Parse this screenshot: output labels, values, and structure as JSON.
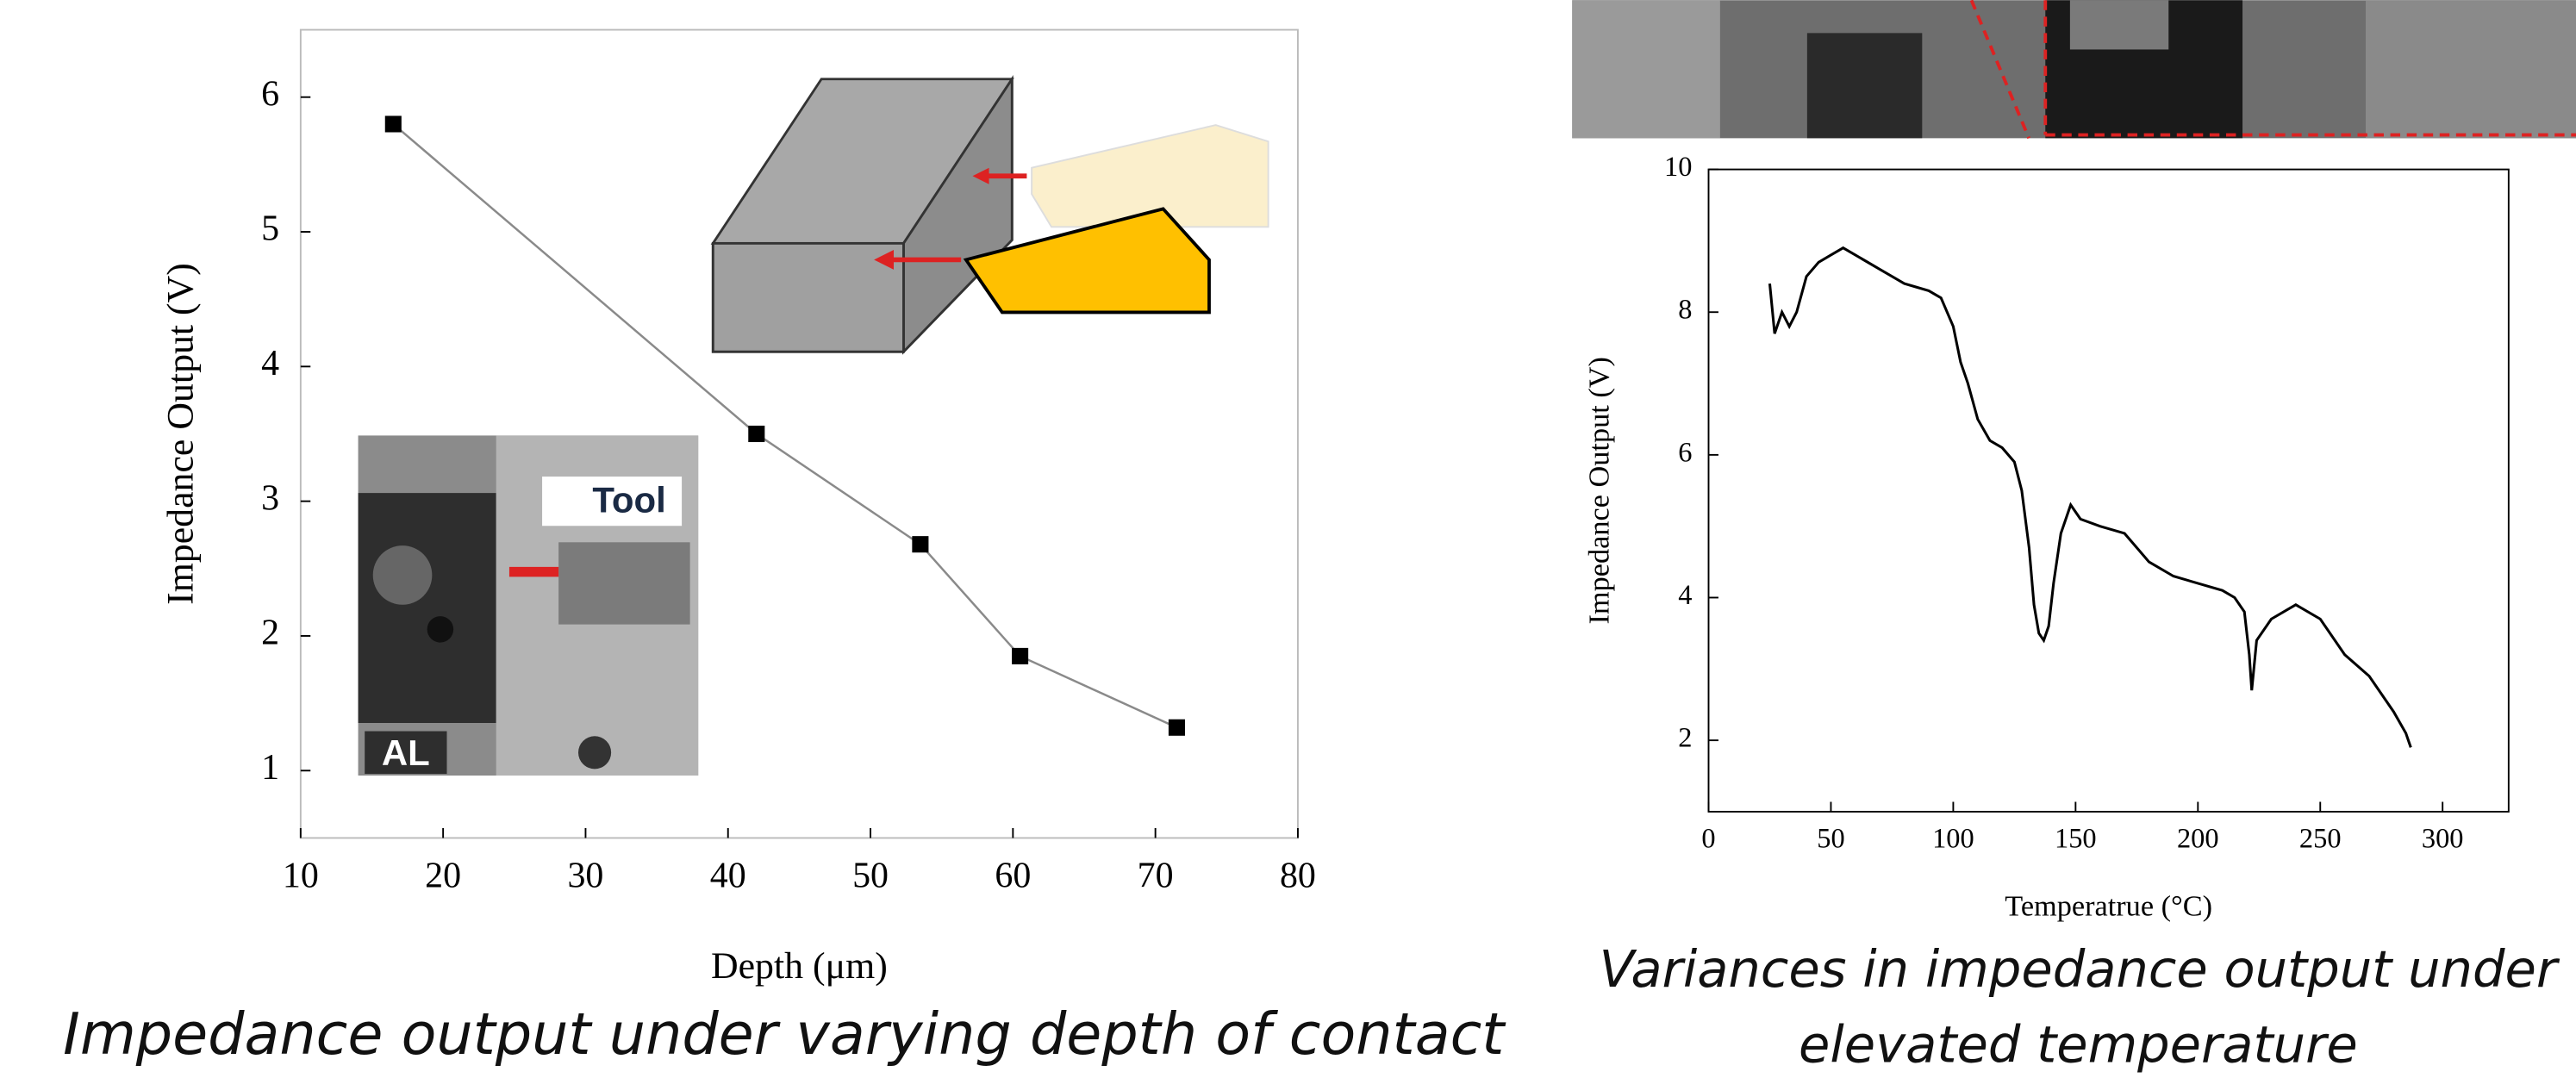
{
  "chart_data": [
    {
      "type": "line",
      "xlabel": "Depth (μm)",
      "ylabel": "Impedance Output (V)",
      "caption": [
        "Impedance output under varying depth of contact"
      ],
      "annotations": [
        "Tool",
        "AL"
      ],
      "x": [
        16.5,
        42,
        53.5,
        60.5,
        71.5
      ],
      "series": [
        {
          "color": "#8a8a8a",
          "marker": "square",
          "marker_color": "#000000",
          "values": [
            5.8,
            3.5,
            2.68,
            1.85,
            1.32
          ]
        }
      ],
      "xlim": [
        10,
        80
      ],
      "xticks": [
        10,
        20,
        30,
        40,
        50,
        60,
        70,
        80
      ],
      "ylim": [
        0.5,
        6.5
      ],
      "yticks": [
        1,
        2,
        3,
        4,
        5,
        6
      ]
    },
    {
      "type": "line",
      "xlabel": "Temperatrue (°C)",
      "ylabel": "Impedance Output (V)",
      "caption": [
        "Variances in impedance output under",
        "elevated temperature"
      ],
      "x": [
        25,
        27,
        30,
        33,
        36,
        40,
        45,
        50,
        55,
        60,
        65,
        70,
        75,
        80,
        85,
        90,
        95,
        100,
        103,
        106,
        110,
        115,
        120,
        125,
        128,
        131,
        133,
        135,
        137,
        139,
        141,
        144,
        148,
        152,
        160,
        170,
        180,
        190,
        200,
        210,
        215,
        219,
        221,
        222,
        224,
        230,
        240,
        250,
        260,
        270,
        280,
        285,
        287
      ],
      "series": [
        {
          "color": "#000000",
          "values": [
            8.4,
            7.7,
            8.0,
            7.8,
            8.0,
            8.5,
            8.7,
            8.8,
            8.9,
            8.8,
            8.7,
            8.6,
            8.5,
            8.4,
            8.35,
            8.3,
            8.2,
            7.8,
            7.3,
            7.0,
            6.5,
            6.2,
            6.1,
            5.9,
            5.5,
            4.7,
            3.9,
            3.5,
            3.4,
            3.6,
            4.2,
            4.9,
            5.3,
            5.1,
            5.0,
            4.9,
            4.5,
            4.3,
            4.2,
            4.1,
            4.0,
            3.8,
            3.2,
            2.7,
            3.4,
            3.7,
            3.9,
            3.7,
            3.2,
            2.9,
            2.4,
            2.1,
            1.9
          ]
        }
      ],
      "xlim": [
        0,
        327
      ],
      "xticks": [
        0,
        50,
        100,
        150,
        200,
        250,
        300
      ],
      "ylim": [
        1,
        10
      ],
      "yticks": [
        2,
        4,
        6,
        8,
        10
      ]
    }
  ]
}
